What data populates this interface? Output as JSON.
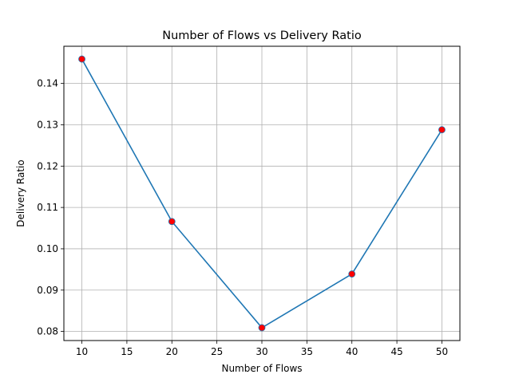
{
  "chart_data": {
    "type": "line",
    "title": "Number of Flows vs Delivery Ratio",
    "xlabel": "Number of Flows",
    "ylabel": "Delivery Ratio",
    "x": [
      10,
      20,
      30,
      40,
      50
    ],
    "series": [
      {
        "values": [
          0.1459,
          0.1066,
          0.0809,
          0.0939,
          0.1288
        ],
        "line_color": "#1f77b4",
        "marker_color": "#ff0000"
      }
    ],
    "xlim": [
      8,
      52
    ],
    "ylim": [
      0.0778,
      0.149
    ],
    "xticks": [
      10,
      15,
      20,
      25,
      30,
      35,
      40,
      45,
      50
    ],
    "xtick_labels": [
      "10",
      "15",
      "20",
      "25",
      "30",
      "35",
      "40",
      "45",
      "50"
    ],
    "yticks": [
      0.08,
      0.09,
      0.1,
      0.11,
      0.12,
      0.13,
      0.14
    ],
    "ytick_labels": [
      "0.08",
      "0.09",
      "0.10",
      "0.11",
      "0.12",
      "0.13",
      "0.14"
    ],
    "grid": true,
    "grid_color": "#b0b0b0"
  }
}
